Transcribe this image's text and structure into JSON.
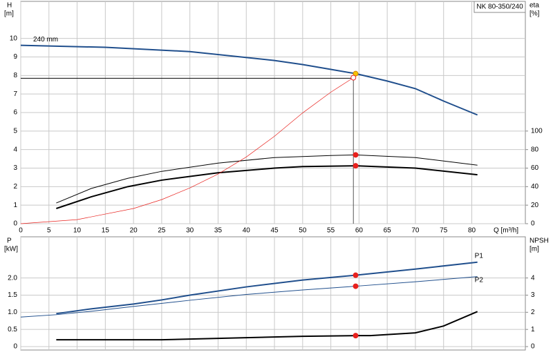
{
  "chart_data": [
    {
      "type": "line",
      "title": "NK 80-350/240",
      "ylabel": "H",
      "yunit": "[m]",
      "y2label": "eta",
      "y2unit": "[%]",
      "xlabel": "Q [m³/h]",
      "xlim": [
        0,
        89.5
      ],
      "xticks": [
        0,
        5,
        10,
        15,
        20,
        25,
        30,
        35,
        40,
        45,
        50,
        55,
        60,
        65,
        70,
        75,
        80
      ],
      "ylim": [
        0,
        12
      ],
      "yticks": [
        0,
        1,
        2,
        3,
        4,
        5,
        6,
        7,
        8,
        9,
        10
      ],
      "y2lim": [
        0,
        240
      ],
      "y2ticks": [
        0,
        20,
        40,
        60,
        80,
        100
      ],
      "grid": true,
      "guide": {
        "x": 59,
        "y": 7.85
      },
      "series": [
        {
          "name": "240 mm",
          "color": "#1f4e8c",
          "line_width": 2,
          "x": [
            0,
            15,
            30,
            45,
            50,
            55,
            59.4,
            65,
            70,
            75,
            81
          ],
          "values": [
            9.63,
            9.52,
            9.29,
            8.81,
            8.59,
            8.33,
            8.1,
            7.7,
            7.29,
            6.62,
            5.87
          ],
          "point_x": 59.4,
          "point": 8.1,
          "marker_color": "#f5c400"
        },
        {
          "color": "#000000",
          "line_width": 1,
          "axis": "y2",
          "x": [
            6.3,
            12.5,
            19,
            25,
            35,
            45,
            55,
            59.4,
            70,
            81
          ],
          "values": [
            22.3,
            38,
            49,
            56.5,
            65.4,
            71.4,
            73.6,
            74.3,
            71.4,
            63.2
          ],
          "point_x": 59.4,
          "point": 74.3,
          "marker_color": "#e8201c"
        },
        {
          "color": "#000000",
          "line_width": 2,
          "axis": "y2",
          "x": [
            6.3,
            12.5,
            19,
            25,
            35,
            45,
            50,
            59.4,
            70,
            81
          ],
          "values": [
            16.4,
            29,
            40,
            47,
            55,
            60,
            61.7,
            62.5,
            60,
            52.8
          ],
          "point_x": 59.4,
          "point": 62.5,
          "marker_color": "#e8201c"
        },
        {
          "color": "#e8201c",
          "line_width": 0.7,
          "x": [
            0,
            10,
            20,
            25,
            30,
            35,
            40,
            45,
            50,
            55,
            59
          ],
          "values": [
            0,
            0.22,
            0.82,
            1.3,
            1.93,
            2.68,
            3.6,
            4.72,
            5.98,
            7.1,
            7.88
          ],
          "point_x": 59,
          "point": 7.88,
          "marker_color": "none"
        }
      ]
    },
    {
      "type": "line",
      "ylabel": "P",
      "yunit": "[kW]",
      "y2label": "NPSH",
      "y2unit": "[m]",
      "xlim": [
        0,
        89.5
      ],
      "ylim": [
        -0.1,
        3.2
      ],
      "yticks": [
        0,
        0.5,
        {
          "value": 1,
          "label": "1.0"
        },
        1.5,
        {
          "value": 2,
          "label": "2.0"
        }
      ],
      "y2lim": [
        -0.2,
        6.4
      ],
      "y2ticks": [
        0,
        1,
        2,
        3,
        4
      ],
      "grid": true,
      "series": [
        {
          "name": "P1",
          "color": "#1f4e8c",
          "line_width": 2,
          "x": [
            6.3,
            12.5,
            20,
            25,
            30,
            40,
            50,
            59.4,
            70,
            81
          ],
          "values": [
            0.96,
            1.1,
            1.24,
            1.36,
            1.5,
            1.74,
            1.94,
            2.08,
            2.26,
            2.46
          ],
          "point_x": 59.4,
          "point": 2.08,
          "marker_color": "#e8201c"
        },
        {
          "name": "P2",
          "color": "#1f4e8c",
          "line_width": 1,
          "x": [
            0,
            6.3,
            12.5,
            20,
            30,
            40,
            50,
            59.4,
            70,
            81
          ],
          "values": [
            0.86,
            0.93,
            1.03,
            1.17,
            1.35,
            1.52,
            1.65,
            1.76,
            1.89,
            2.04
          ],
          "point_x": 59.4,
          "point": 1.76,
          "marker_color": "#e8201c"
        },
        {
          "color": "#000000",
          "line_width": 2,
          "axis": "y2",
          "x": [
            6.3,
            25,
            30,
            40,
            50,
            59.4,
            62,
            70,
            75,
            81
          ],
          "values": [
            0.4,
            0.4,
            0.44,
            0.52,
            0.6,
            0.64,
            0.64,
            0.8,
            1.2,
            2.04
          ],
          "point_x": 59.4,
          "point": 0.64,
          "marker_color": "#e8201c"
        }
      ]
    }
  ]
}
